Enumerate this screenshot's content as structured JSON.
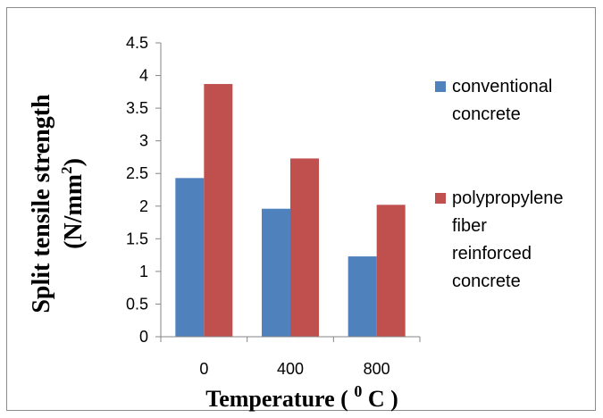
{
  "chart_data": {
    "type": "bar",
    "categories": [
      "0",
      "400",
      "800"
    ],
    "series": [
      {
        "name": "conventional concrete",
        "values": [
          2.43,
          1.96,
          1.23
        ],
        "color": "#4F81BD",
        "legend_lines": [
          "conventional",
          "concrete"
        ]
      },
      {
        "name": "polypropylene fiber reinforced concrete",
        "values": [
          3.87,
          2.73,
          2.02
        ],
        "color": "#C0504D",
        "legend_lines": [
          "polypropylene",
          "fiber",
          "reinforced",
          "concrete"
        ]
      }
    ],
    "xlabel": "Temperature ( ⁰ C )",
    "xlabel_parts": {
      "before": "Temperature ( ",
      "sup": "0",
      "after": " C )"
    },
    "ylabel": "Split tensile strength (N/mm²)",
    "ylabel_line1": "Split tensile strength",
    "ylabel_line2_parts": {
      "before": "(N/mm",
      "sup": "2",
      "after": ")"
    },
    "ylim": [
      0,
      4.5
    ],
    "yticks": [
      "0",
      "0.5",
      "1",
      "1.5",
      "2",
      "2.5",
      "3",
      "3.5",
      "4",
      "4.5"
    ],
    "grid": false,
    "legend_position": "right"
  }
}
